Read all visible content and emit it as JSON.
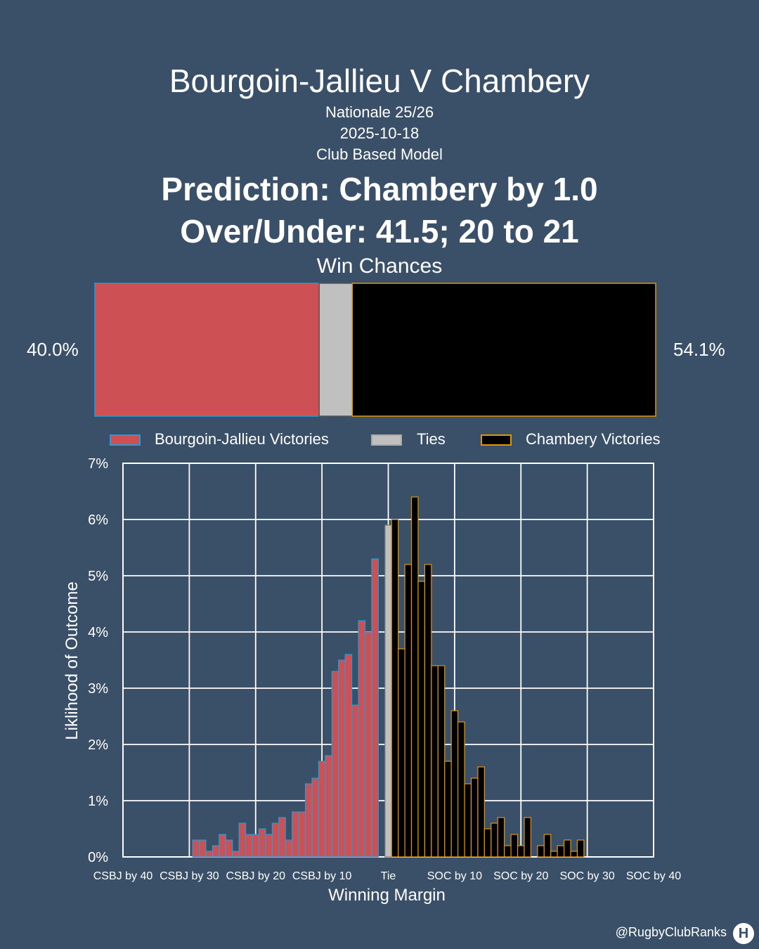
{
  "header": {
    "title": "Bourgoin-Jallieu V Chambery",
    "competition": "Nationale 25/26",
    "date": "2025-10-18",
    "model": "Club Based Model",
    "prediction": "Prediction: Chambery by 1.0",
    "over_under": "Over/Under: 41.5; 20 to 21"
  },
  "win_chances": {
    "label": "Win Chances",
    "home_pct": "40.0%",
    "away_pct": "54.1%",
    "home_value": 40.0,
    "tie_value": 5.9,
    "away_value": 54.1
  },
  "legend": {
    "home": "Bourgoin-Jallieu Victories",
    "tie": "Ties",
    "away": "Chambery Victories"
  },
  "colors": {
    "background": "#3a5068",
    "home_fill": "#cd5055",
    "home_edge": "#2a9ad4",
    "tie_fill": "#c0c0c0",
    "away_fill": "#000000",
    "away_edge": "#e0950a"
  },
  "credit": "@RugbyClubRanks",
  "chart_data": {
    "type": "bar",
    "xlabel": "Winning Margin",
    "ylabel": "Liklihood of Outcome",
    "xlim": [
      -40,
      40
    ],
    "ylim": [
      0,
      7
    ],
    "grid": true,
    "xticks": [
      {
        "value": -40,
        "label": "CSBJ by 40"
      },
      {
        "value": -30,
        "label": "CSBJ by 30"
      },
      {
        "value": -20,
        "label": "CSBJ by 20"
      },
      {
        "value": -10,
        "label": "CSBJ by 10"
      },
      {
        "value": 0,
        "label": "Tie"
      },
      {
        "value": 10,
        "label": "SOC by 10"
      },
      {
        "value": 20,
        "label": "SOC by 20"
      },
      {
        "value": 30,
        "label": "SOC by 30"
      },
      {
        "value": 40,
        "label": "SOC by 40"
      }
    ],
    "yticks": [
      {
        "value": 0,
        "label": "0%"
      },
      {
        "value": 1,
        "label": "1%"
      },
      {
        "value": 2,
        "label": "2%"
      },
      {
        "value": 3,
        "label": "3%"
      },
      {
        "value": 4,
        "label": "4%"
      },
      {
        "value": 5,
        "label": "5%"
      },
      {
        "value": 6,
        "label": "6%"
      },
      {
        "value": 7,
        "label": "7%"
      }
    ],
    "series": [
      {
        "name": "Bourgoin-Jallieu Victories",
        "x": [
          -29,
          -28,
          -27,
          -26,
          -25,
          -24,
          -23,
          -22,
          -21,
          -20,
          -19,
          -18,
          -17,
          -16,
          -15,
          -14,
          -13,
          -12,
          -11,
          -10,
          -9,
          -8,
          -7,
          -6,
          -5,
          -4,
          -3,
          -2,
          -1
        ],
        "values": [
          0.3,
          0.3,
          0.1,
          0.2,
          0.4,
          0.3,
          0.1,
          0.6,
          0.4,
          0.4,
          0.5,
          0.4,
          0.6,
          0.7,
          0.3,
          0.8,
          0.8,
          1.3,
          1.4,
          1.7,
          1.8,
          3.3,
          3.5,
          3.6,
          2.7,
          4.2,
          4.0,
          5.3,
          0.0
        ]
      },
      {
        "name": "Ties",
        "x": [
          0
        ],
        "values": [
          5.9
        ]
      },
      {
        "name": "Chambery Victories",
        "x": [
          1,
          2,
          3,
          4,
          5,
          6,
          7,
          8,
          9,
          10,
          11,
          12,
          13,
          14,
          15,
          16,
          17,
          18,
          19,
          20,
          21,
          22,
          23,
          24,
          25,
          26,
          27,
          28,
          29
        ],
        "values": [
          6.0,
          3.7,
          5.2,
          6.4,
          4.9,
          5.2,
          3.4,
          3.4,
          1.7,
          2.6,
          2.4,
          1.3,
          1.4,
          1.6,
          0.5,
          0.6,
          0.7,
          0.2,
          0.4,
          0.2,
          0.7,
          0.0,
          0.2,
          0.4,
          0.1,
          0.2,
          0.3,
          0.1,
          0.3
        ]
      }
    ]
  }
}
